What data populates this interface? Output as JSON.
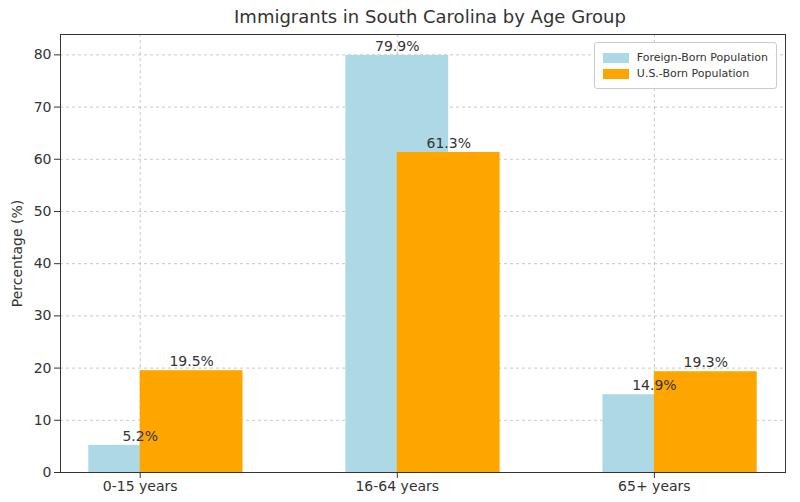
{
  "chart_data": {
    "type": "bar",
    "title": "Immigrants in South Carolina by Age Group",
    "y_label": "Percentage (%)",
    "categories": [
      "0-15 years",
      "16-64 years",
      "65+ years"
    ],
    "series": [
      {
        "name": "Foreign-Born Population",
        "color": "#add8e6",
        "values": [
          5.2,
          79.9,
          14.9
        ],
        "value_labels": [
          "5.2%",
          "79.9%",
          "14.9%"
        ]
      },
      {
        "name": "U.S.-Born Population",
        "color": "#ffa500",
        "values": [
          19.5,
          61.3,
          19.3
        ],
        "value_labels": [
          "19.5%",
          "61.3%",
          "19.3%"
        ]
      }
    ],
    "ylim": [
      0,
      83.9
    ],
    "yticks": [
      0,
      10,
      20,
      30,
      40,
      50,
      60,
      70,
      80
    ],
    "grid": true,
    "legend": "upper right",
    "data_labels": true
  }
}
